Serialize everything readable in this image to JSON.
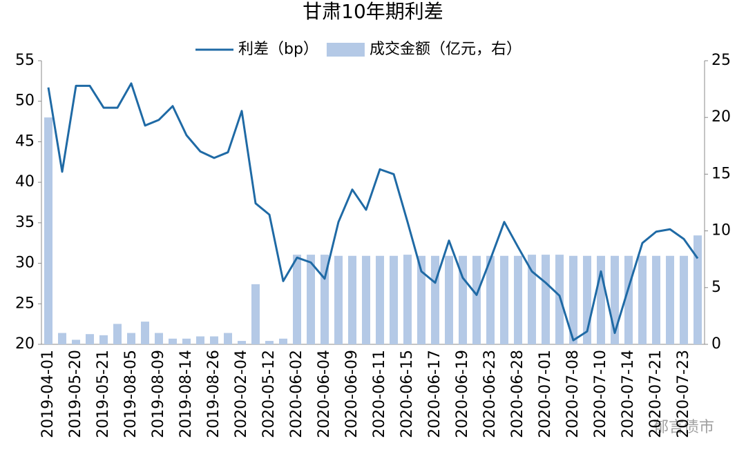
{
  "chart_data": {
    "type": "bar_line",
    "title": "甘肃10年期利差",
    "watermark": "郁言债市",
    "categories": [
      "2019-04-01",
      null,
      "2019-05-20",
      null,
      "2019-05-21",
      null,
      "2019-08-05",
      null,
      "2019-08-09",
      null,
      "2019-08-14",
      null,
      "2019-08-26",
      null,
      "2020-02-04",
      null,
      "2020-05-12",
      null,
      "2020-06-02",
      null,
      "2020-06-04",
      null,
      "2020-06-09",
      null,
      "2020-06-11",
      null,
      "2020-06-15",
      null,
      "2020-06-17",
      null,
      "2020-06-19",
      null,
      "2020-06-23",
      null,
      "2020-06-28",
      null,
      "2020-07-01",
      null,
      "2020-07-08",
      null,
      "2020-07-10",
      null,
      "2020-07-14",
      null,
      "2020-07-21",
      null,
      "2020-07-23",
      null
    ],
    "series": [
      {
        "name": "利差（bp）",
        "kind": "line",
        "color": "#1f6aa5",
        "values": [
          51.7,
          41.3,
          51.9,
          51.9,
          49.2,
          49.2,
          52.2,
          47.0,
          47.7,
          49.4,
          45.8,
          43.8,
          43.0,
          43.7,
          48.8,
          37.4,
          36.0,
          27.8,
          30.7,
          30.1,
          28.1,
          35.1,
          39.1,
          36.6,
          41.6,
          41.0,
          35.1,
          29.0,
          27.6,
          32.8,
          28.2,
          26.1,
          30.5,
          35.1,
          32.0,
          29.0,
          27.6,
          26.0,
          20.5,
          21.6,
          29.0,
          21.4,
          27.0,
          32.5,
          33.9,
          34.2,
          33.0,
          30.6
        ]
      },
      {
        "name": "成交金额（亿元，右）",
        "kind": "bar",
        "axis": "y2",
        "color": "#b4c9e6",
        "values": [
          20.0,
          1.0,
          0.4,
          0.9,
          0.8,
          1.8,
          1.0,
          2.0,
          1.0,
          0.5,
          0.5,
          0.7,
          0.7,
          1.0,
          0.3,
          5.3,
          0.3,
          0.5,
          7.9,
          7.9,
          7.9,
          7.8,
          7.8,
          7.8,
          7.8,
          7.8,
          7.9,
          7.8,
          7.8,
          7.8,
          7.8,
          7.8,
          7.8,
          7.8,
          7.8,
          7.9,
          7.9,
          7.9,
          7.8,
          7.8,
          7.8,
          7.8,
          7.8,
          7.8,
          7.8,
          7.8,
          7.8,
          9.6
        ]
      }
    ],
    "ylim": [
      20,
      55
    ],
    "yticks": [
      20,
      25,
      30,
      35,
      40,
      45,
      50,
      55
    ],
    "y2lim": [
      0,
      25
    ],
    "y2ticks": [
      0,
      5,
      10,
      15,
      20,
      25
    ]
  }
}
